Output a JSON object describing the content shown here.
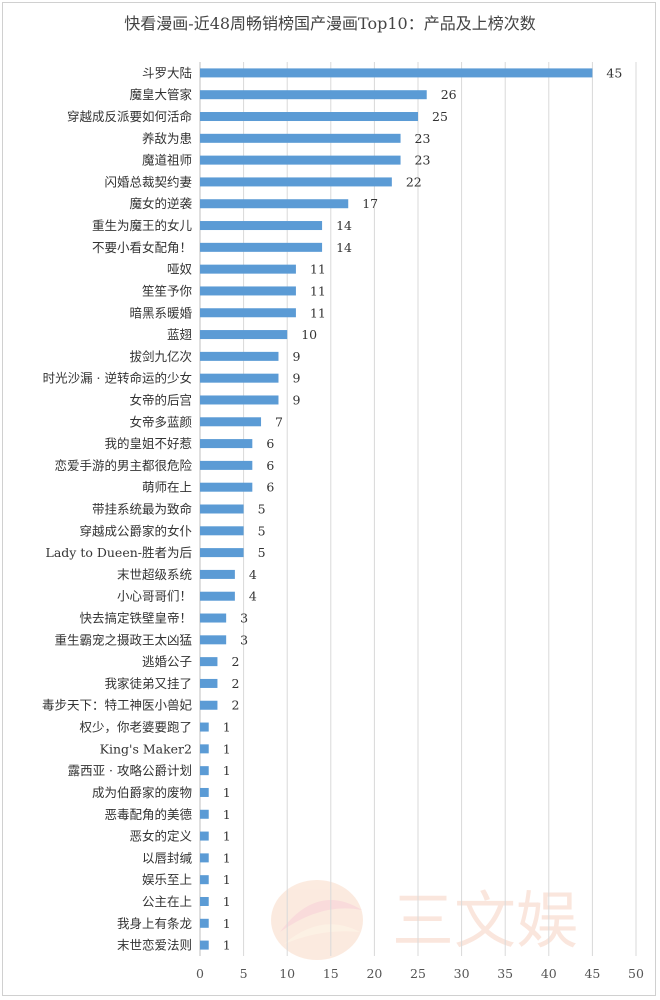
{
  "chart_data": {
    "type": "bar",
    "orientation": "horizontal",
    "title": "快看漫画-近48周畅销榜国产漫画Top10：产品及上榜次数",
    "categories": [
      "斗罗大陆",
      "魔皇大管家",
      "穿越成反派要如何活命",
      "养敌为患",
      "魔道祖师",
      "闪婚总裁契约妻",
      "魔女的逆袭",
      "重生为魔王的女儿",
      "不要小看女配角！",
      "哑奴",
      "笙笙予你",
      "暗黑系暖婚",
      "蓝翅",
      "拔剑九亿次",
      "时光沙漏 · 逆转命运的少女",
      "女帝的后宫",
      "女帝多蓝颜",
      "我的皇姐不好惹",
      "恋爱手游的男主都很危险",
      "萌师在上",
      "带挂系统最为致命",
      "穿越成公爵家的女仆",
      "Lady to Dueen-胜者为后",
      "末世超级系统",
      "小心哥哥们！",
      "快去搞定铁壁皇帝！",
      "重生霸宠之摄政王太凶猛",
      "逃婚公子",
      "我家徒弟又挂了",
      "毒步天下：特工神医小兽妃",
      "权少，你老婆要跑了",
      "King's Maker2",
      "露西亚 · 攻略公爵计划",
      "成为伯爵家的废物",
      "恶毒配角的美德",
      "恶女的定义",
      "以唇封缄",
      "娱乐至上",
      "公主在上",
      "我身上有条龙",
      "末世恋爱法则"
    ],
    "values": [
      45,
      26,
      25,
      23,
      23,
      22,
      17,
      14,
      14,
      11,
      11,
      11,
      10,
      9,
      9,
      9,
      7,
      6,
      6,
      6,
      5,
      5,
      5,
      4,
      4,
      3,
      3,
      2,
      2,
      2,
      1,
      1,
      1,
      1,
      1,
      1,
      1,
      1,
      1,
      1,
      1
    ],
    "xlim": [
      0,
      50
    ],
    "xticks": [
      0,
      5,
      10,
      15,
      20,
      25,
      30,
      35,
      40,
      45,
      50
    ],
    "grid": true,
    "bar_color": "#5b9bd5"
  },
  "watermark": {
    "text": "三文娱"
  }
}
